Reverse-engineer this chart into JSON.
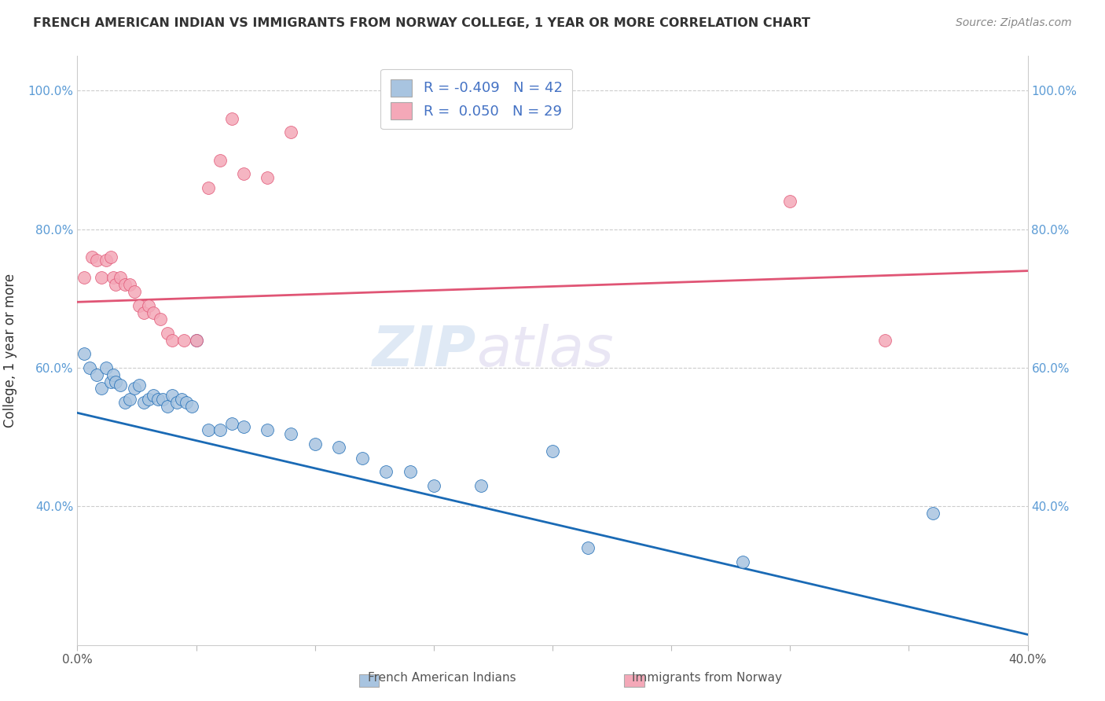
{
  "title": "FRENCH AMERICAN INDIAN VS IMMIGRANTS FROM NORWAY COLLEGE, 1 YEAR OR MORE CORRELATION CHART",
  "source": "Source: ZipAtlas.com",
  "ylabel": "College, 1 year or more",
  "xlim": [
    0.0,
    0.4
  ],
  "ylim": [
    0.2,
    1.05
  ],
  "ytick_vals": [
    0.4,
    0.6,
    0.8,
    1.0
  ],
  "ytick_labels": [
    "40.0%",
    "60.0%",
    "80.0%",
    "100.0%"
  ],
  "xtick_vals": [
    0.0,
    0.05,
    0.1,
    0.15,
    0.2,
    0.25,
    0.3,
    0.35,
    0.4
  ],
  "xtick_labels": [
    "0.0%",
    "",
    "",
    "",
    "",
    "",
    "",
    "",
    "40.0%"
  ],
  "legend_labels": [
    "French American Indians",
    "Immigrants from Norway"
  ],
  "blue_R": "-0.409",
  "blue_N": "42",
  "pink_R": "0.050",
  "pink_N": "29",
  "blue_color": "#a8c4e0",
  "pink_color": "#f4a8b8",
  "blue_line_color": "#1a6ab5",
  "pink_line_color": "#e05575",
  "legend_text_color": "#4472c4",
  "watermark": "ZIPatlas",
  "blue_points_x": [
    0.003,
    0.005,
    0.008,
    0.01,
    0.012,
    0.014,
    0.015,
    0.016,
    0.018,
    0.02,
    0.022,
    0.024,
    0.026,
    0.028,
    0.03,
    0.032,
    0.034,
    0.036,
    0.038,
    0.04,
    0.042,
    0.044,
    0.046,
    0.048,
    0.05,
    0.055,
    0.06,
    0.065,
    0.07,
    0.08,
    0.09,
    0.1,
    0.11,
    0.12,
    0.13,
    0.14,
    0.15,
    0.17,
    0.2,
    0.215,
    0.28,
    0.36
  ],
  "blue_points_y": [
    0.62,
    0.6,
    0.59,
    0.57,
    0.6,
    0.58,
    0.59,
    0.58,
    0.575,
    0.55,
    0.555,
    0.57,
    0.575,
    0.55,
    0.555,
    0.56,
    0.555,
    0.555,
    0.545,
    0.56,
    0.55,
    0.555,
    0.55,
    0.545,
    0.64,
    0.51,
    0.51,
    0.52,
    0.515,
    0.51,
    0.505,
    0.49,
    0.485,
    0.47,
    0.45,
    0.45,
    0.43,
    0.43,
    0.48,
    0.34,
    0.32,
    0.39
  ],
  "pink_points_x": [
    0.003,
    0.006,
    0.008,
    0.01,
    0.012,
    0.014,
    0.015,
    0.016,
    0.018,
    0.02,
    0.022,
    0.024,
    0.026,
    0.028,
    0.03,
    0.032,
    0.035,
    0.038,
    0.04,
    0.045,
    0.05,
    0.055,
    0.06,
    0.065,
    0.07,
    0.08,
    0.09,
    0.3,
    0.34
  ],
  "pink_points_y": [
    0.73,
    0.76,
    0.755,
    0.73,
    0.755,
    0.76,
    0.73,
    0.72,
    0.73,
    0.72,
    0.72,
    0.71,
    0.69,
    0.68,
    0.69,
    0.68,
    0.67,
    0.65,
    0.64,
    0.64,
    0.64,
    0.86,
    0.9,
    0.96,
    0.88,
    0.875,
    0.94,
    0.84,
    0.64
  ],
  "blue_trend_x": [
    0.0,
    0.4
  ],
  "blue_trend_y": [
    0.535,
    0.215
  ],
  "pink_trend_x": [
    0.0,
    0.4
  ],
  "pink_trend_y": [
    0.695,
    0.74
  ]
}
